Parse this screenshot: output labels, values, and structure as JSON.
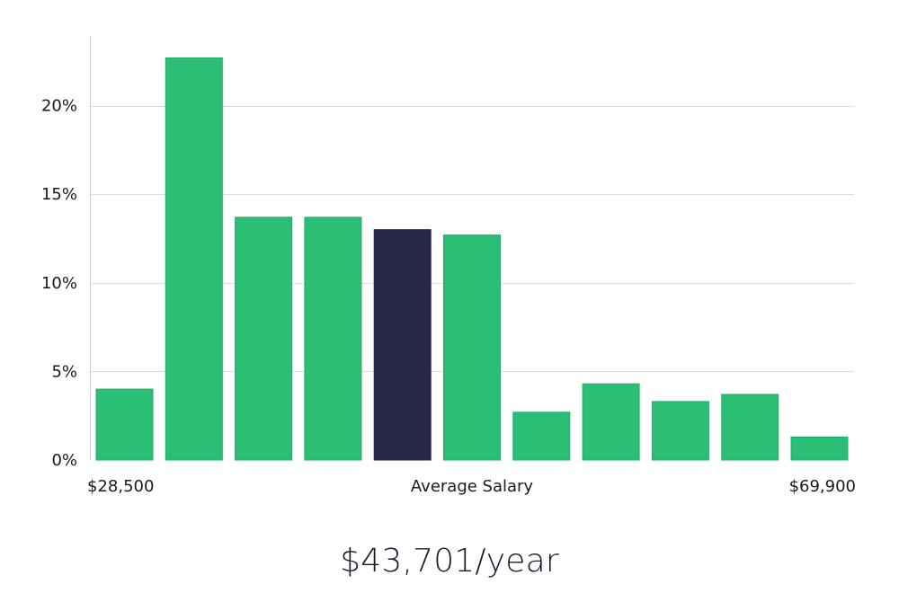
{
  "colors": {
    "bar": "#2bbf76",
    "bar_stroke": "#22ad68",
    "highlight": "#282646",
    "grid": "#dcdcdc",
    "axis": "#cfcfcf",
    "text": "#1a1a1a"
  },
  "chart_data": {
    "type": "bar",
    "title": "",
    "xlabel": "Average Salary",
    "ylabel": "",
    "x_min_label": "$28,500",
    "x_max_label": "$69,900",
    "ylim": [
      0,
      24
    ],
    "yticks": [
      {
        "value": 0,
        "label": "0%"
      },
      {
        "value": 5,
        "label": "5%"
      },
      {
        "value": 10,
        "label": "10%"
      },
      {
        "value": 15,
        "label": "15%"
      },
      {
        "value": 20,
        "label": "20%"
      }
    ],
    "grid": true,
    "highlight_index": 4,
    "values": [
      4.0,
      22.7,
      13.7,
      13.7,
      13.0,
      12.7,
      2.7,
      4.3,
      3.3,
      3.7,
      1.3
    ]
  },
  "summary": {
    "salary_text": "$43,701/year"
  }
}
